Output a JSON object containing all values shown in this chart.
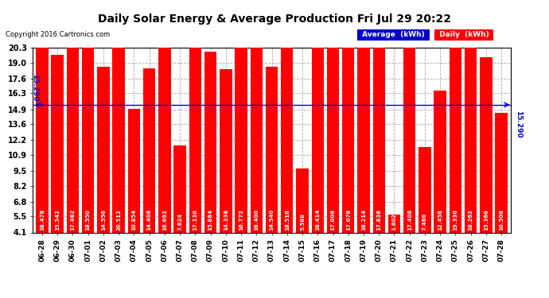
{
  "title": "Daily Solar Energy & Average Production Fri Jul 29 20:22",
  "copyright": "Copyright 2016 Cartronics.com",
  "average_line": 15.29,
  "average_label": "15.290",
  "bar_color": "#FF0000",
  "avg_line_color": "#0000CC",
  "background_color": "#FFFFFF",
  "plot_bg_color": "#FFFFFF",
  "grid_color": "#AAAAAA",
  "ylim_min": 4.1,
  "ylim_max": 20.3,
  "yticks": [
    4.1,
    5.5,
    6.8,
    8.2,
    9.5,
    10.9,
    12.2,
    13.6,
    14.9,
    16.3,
    17.6,
    19.0,
    20.3
  ],
  "categories": [
    "06-28",
    "06-29",
    "06-30",
    "07-01",
    "07-02",
    "07-03",
    "07-04",
    "07-05",
    "07-06",
    "07-07",
    "07-08",
    "07-09",
    "07-10",
    "07-11",
    "07-12",
    "07-13",
    "07-14",
    "07-15",
    "07-16",
    "07-17",
    "07-18",
    "07-19",
    "07-20",
    "07-21",
    "07-22",
    "07-23",
    "07-24",
    "07-25",
    "07-26",
    "07-27",
    "07-28"
  ],
  "values": [
    18.478,
    15.542,
    17.482,
    18.55,
    14.556,
    20.512,
    10.854,
    14.406,
    16.692,
    7.624,
    17.13,
    15.884,
    14.338,
    16.772,
    16.4,
    14.54,
    18.516,
    5.588,
    18.414,
    17.006,
    17.078,
    18.214,
    17.838,
    1.602,
    17.408,
    7.466,
    12.458,
    19.336,
    18.262,
    15.366,
    10.508
  ],
  "legend_avg_color": "#0000CC",
  "legend_daily_color": "#FF0000",
  "legend_avg_text": "Average  (kWh)",
  "legend_daily_text": "Daily  (kWh)"
}
